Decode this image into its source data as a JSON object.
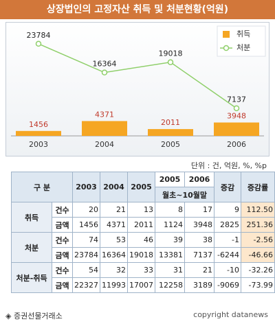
{
  "header": {
    "title": "상장법인의 고정자산 취득 및 처분현황(억원)"
  },
  "chart_data": {
    "type": "bar",
    "categories": [
      "2003",
      "2004",
      "2005",
      "2006"
    ],
    "series": [
      {
        "name": "취득",
        "type": "bar",
        "color": "#f5a623",
        "label_color": "#c0392b",
        "values": [
          1456,
          4371,
          2011,
          3948
        ]
      },
      {
        "name": "처분",
        "type": "line",
        "axis": "y2",
        "color": "#8fcf6a",
        "label_color": "#222222",
        "values": [
          23784,
          16364,
          19018,
          7137
        ]
      }
    ],
    "ylim": [
      0,
      32000
    ],
    "y2lim": [
      0,
      28000
    ],
    "legend": "top-right"
  },
  "table": {
    "unit": "단위 : 건, 억원, %, %p",
    "header": {
      "group": "구 분",
      "years": [
        "2003",
        "2004",
        "2005"
      ],
      "period_years": [
        "2005",
        "2006"
      ],
      "period": "월초~10월말",
      "change": "증감",
      "change_rate": "증감률"
    },
    "groups": [
      {
        "label": "취득",
        "rows": [
          {
            "item": "건수",
            "cells": [
              "20",
              "21",
              "13",
              "8",
              "17",
              "9",
              "112.50"
            ]
          },
          {
            "item": "금액",
            "cells": [
              "1456",
              "4371",
              "2011",
              "1124",
              "3948",
              "2825",
              "251.36"
            ]
          }
        ]
      },
      {
        "label": "처분",
        "rows": [
          {
            "item": "건수",
            "cells": [
              "74",
              "53",
              "46",
              "39",
              "38",
              "-1",
              "-2.56"
            ]
          },
          {
            "item": "금액",
            "cells": [
              "23784",
              "16364",
              "19018",
              "13381",
              "7137",
              "-6244",
              "-46.66"
            ]
          }
        ]
      },
      {
        "label": "처분-취득",
        "rows": [
          {
            "item": "건수",
            "cells": [
              "54",
              "32",
              "33",
              "31",
              "21",
              "-10",
              "-32.26"
            ]
          },
          {
            "item": "금액",
            "cells": [
              "22327",
              "11993",
              "17007",
              "12258",
              "3189",
              "-9069",
              "-73.99"
            ]
          }
        ]
      }
    ]
  },
  "footer": {
    "source": "◈ 증권선물거래소",
    "copyright": "copyright datanews"
  }
}
